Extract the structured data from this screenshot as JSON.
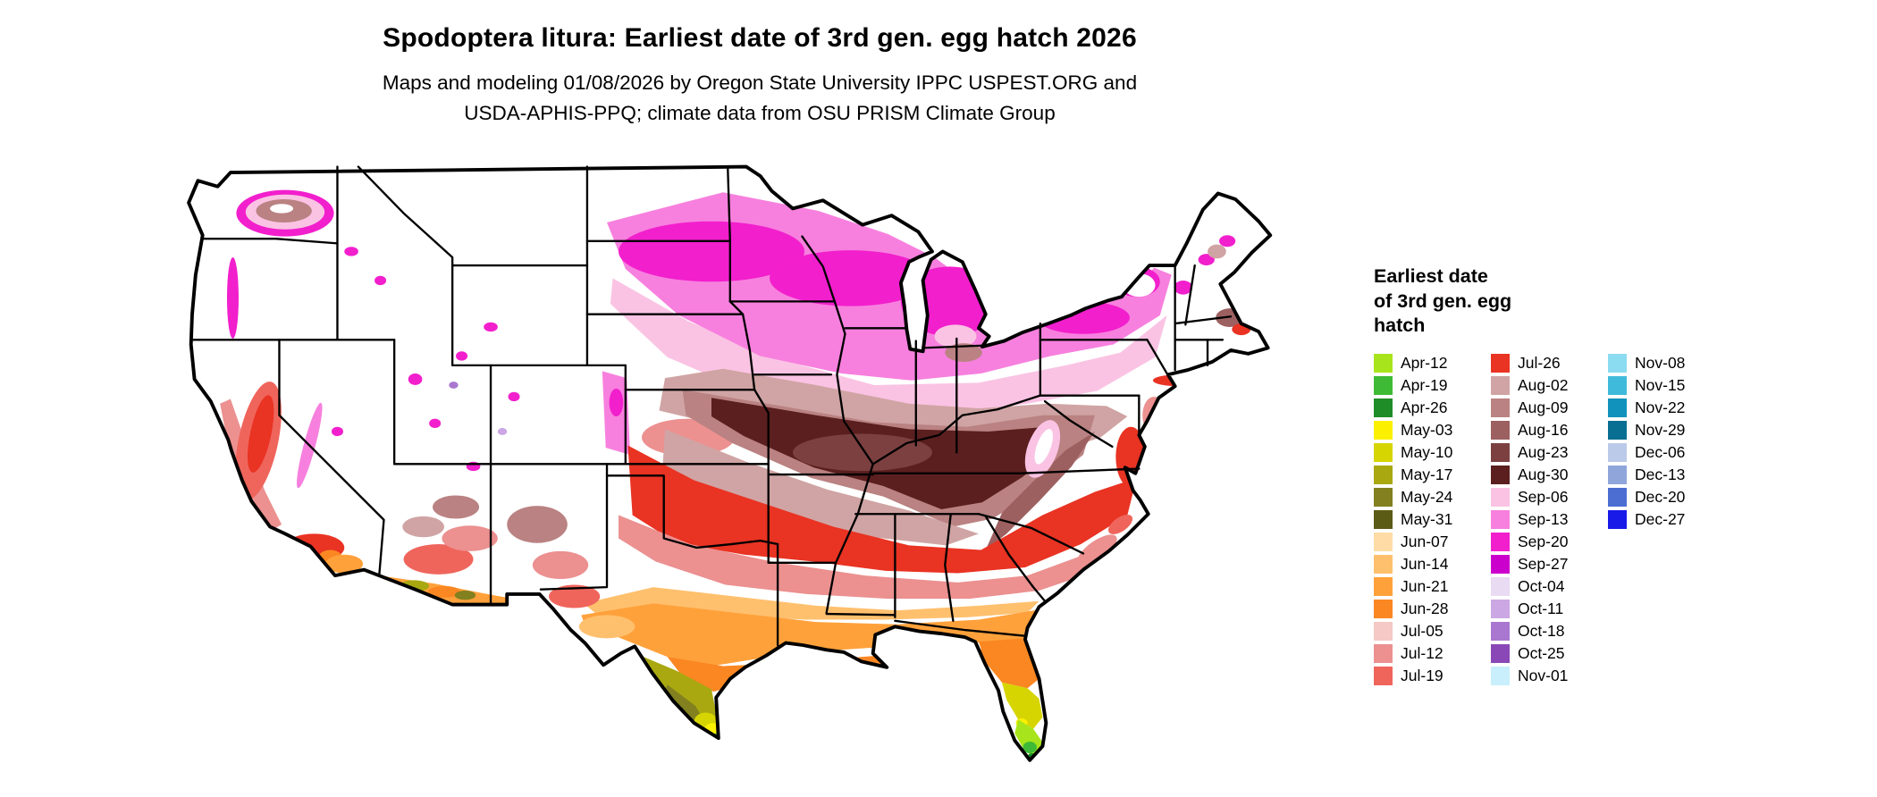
{
  "header": {
    "title": "Spodoptera litura: Earliest date of 3rd gen. egg hatch 2026",
    "subtitle_lines": [
      "Maps and modeling 01/08/2026 by Oregon State University IPPC USPEST.ORG and",
      "USDA-APHIS-PPQ; climate data from OSU PRISM Climate Group"
    ]
  },
  "legend": {
    "title_lines": [
      "Earliest date",
      "of 3rd gen. egg",
      "hatch"
    ],
    "columns": [
      [
        {
          "label": "Apr-12",
          "color": "#A8E41B"
        },
        {
          "label": "Apr-19",
          "color": "#3FBA36"
        },
        {
          "label": "Apr-26",
          "color": "#1E8D28"
        },
        {
          "label": "May-03",
          "color": "#FCF001"
        },
        {
          "label": "May-10",
          "color": "#D6D501"
        },
        {
          "label": "May-17",
          "color": "#A9A811"
        },
        {
          "label": "May-24",
          "color": "#82801F"
        },
        {
          "label": "May-31",
          "color": "#5C5B16"
        },
        {
          "label": "Jun-07",
          "color": "#FFDCA6"
        },
        {
          "label": "Jun-14",
          "color": "#FFC06E"
        },
        {
          "label": "Jun-21",
          "color": "#FFA13B"
        },
        {
          "label": "Jun-28",
          "color": "#FA8722"
        },
        {
          "label": "Jul-05",
          "color": "#F5C9C5"
        },
        {
          "label": "Jul-12",
          "color": "#EC9090"
        },
        {
          "label": "Jul-19",
          "color": "#EF655C"
        }
      ],
      [
        {
          "label": "Jul-26",
          "color": "#E93323"
        },
        {
          "label": "Aug-02",
          "color": "#D0A4A4"
        },
        {
          "label": "Aug-09",
          "color": "#BA8282"
        },
        {
          "label": "Aug-16",
          "color": "#9D6060"
        },
        {
          "label": "Aug-23",
          "color": "#7C4040"
        },
        {
          "label": "Aug-30",
          "color": "#5B1F1F"
        },
        {
          "label": "Sep-06",
          "color": "#FAC3E3"
        },
        {
          "label": "Sep-13",
          "color": "#F780DE"
        },
        {
          "label": "Sep-20",
          "color": "#F21FCD"
        },
        {
          "label": "Sep-27",
          "color": "#CC00CC"
        },
        {
          "label": "Oct-04",
          "color": "#E8DBF2"
        },
        {
          "label": "Oct-11",
          "color": "#CBA7E4"
        },
        {
          "label": "Oct-18",
          "color": "#A977D0"
        },
        {
          "label": "Oct-25",
          "color": "#8948B6"
        },
        {
          "label": "Nov-01",
          "color": "#C8EFFB"
        }
      ],
      [
        {
          "label": "Nov-08",
          "color": "#8BDCF0"
        },
        {
          "label": "Nov-15",
          "color": "#40BADB"
        },
        {
          "label": "Nov-22",
          "color": "#1092BC"
        },
        {
          "label": "Nov-29",
          "color": "#086F93"
        },
        {
          "label": "Dec-06",
          "color": "#BCCAE9"
        },
        {
          "label": "Dec-13",
          "color": "#90A6DB"
        },
        {
          "label": "Dec-20",
          "color": "#4C6ED3"
        },
        {
          "label": "Dec-27",
          "color": "#1A1AE8"
        }
      ]
    ]
  },
  "map": {
    "region": "Continental United States",
    "no_data_color": "#FFFFFF",
    "border_color": "#000000"
  }
}
